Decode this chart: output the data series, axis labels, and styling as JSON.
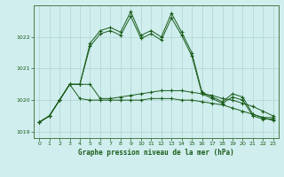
{
  "title": "Graphe pression niveau de la mer (hPa)",
  "background_color": "#d0eeee",
  "grid_color": "#b0d4d4",
  "line_color": "#1a5c1a",
  "xlim": [
    -0.5,
    23.5
  ],
  "ylim": [
    1018.8,
    1023.0
  ],
  "yticks": [
    1019,
    1020,
    1021,
    1022
  ],
  "xticks": [
    0,
    1,
    2,
    3,
    4,
    5,
    6,
    7,
    8,
    9,
    10,
    11,
    12,
    13,
    14,
    15,
    16,
    17,
    18,
    19,
    20,
    21,
    22,
    23
  ],
  "s1": [
    1019.3,
    1019.5,
    1020.0,
    1020.5,
    1020.5,
    1021.8,
    1022.2,
    1022.3,
    1022.15,
    1022.8,
    1022.05,
    1022.2,
    1022.0,
    1022.75,
    1022.15,
    1021.5,
    1020.25,
    1020.1,
    1019.95,
    1020.2,
    1020.1,
    1019.55,
    1019.45,
    1019.45
  ],
  "s2": [
    1019.3,
    1019.5,
    1020.0,
    1020.5,
    1020.5,
    1021.7,
    1022.1,
    1022.2,
    1022.05,
    1022.65,
    1021.95,
    1022.1,
    1021.9,
    1022.6,
    1022.05,
    1021.4,
    1020.2,
    1020.05,
    1019.9,
    1020.1,
    1020.0,
    1019.5,
    1019.4,
    1019.4
  ],
  "s3": [
    1019.3,
    1019.5,
    1020.0,
    1020.5,
    1020.5,
    1020.5,
    1020.05,
    1020.05,
    1020.1,
    1020.15,
    1020.2,
    1020.25,
    1020.3,
    1020.3,
    1020.3,
    1020.25,
    1020.2,
    1020.15,
    1020.05,
    1020.0,
    1019.9,
    1019.8,
    1019.65,
    1019.5
  ],
  "s4": [
    1019.3,
    1019.5,
    1020.0,
    1020.5,
    1020.05,
    1020.0,
    1020.0,
    1020.0,
    1020.0,
    1020.0,
    1020.0,
    1020.05,
    1020.05,
    1020.05,
    1020.0,
    1020.0,
    1019.95,
    1019.9,
    1019.85,
    1019.75,
    1019.65,
    1019.55,
    1019.45,
    1019.35
  ]
}
